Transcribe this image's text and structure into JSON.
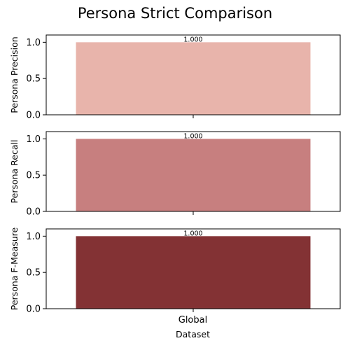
{
  "chart_data": {
    "type": "bar",
    "title": "Persona Strict Comparison",
    "xlabel": "Dataset",
    "categories": [
      "Global"
    ],
    "ylim": [
      0,
      1.1
    ],
    "yticks": [
      "0.0",
      "0.5",
      "1.0"
    ],
    "grid": false,
    "panels": [
      {
        "ylabel": "Persona Precision",
        "values": [
          1.0
        ],
        "labels": [
          "1.000"
        ],
        "color": "#e8b4ab"
      },
      {
        "ylabel": "Persona Recall",
        "values": [
          1.0
        ],
        "labels": [
          "1.000"
        ],
        "color": "#c77f7f"
      },
      {
        "ylabel": "Persona F-Measure",
        "values": [
          1.0
        ],
        "labels": [
          "1.000"
        ],
        "color": "#833234"
      }
    ]
  }
}
